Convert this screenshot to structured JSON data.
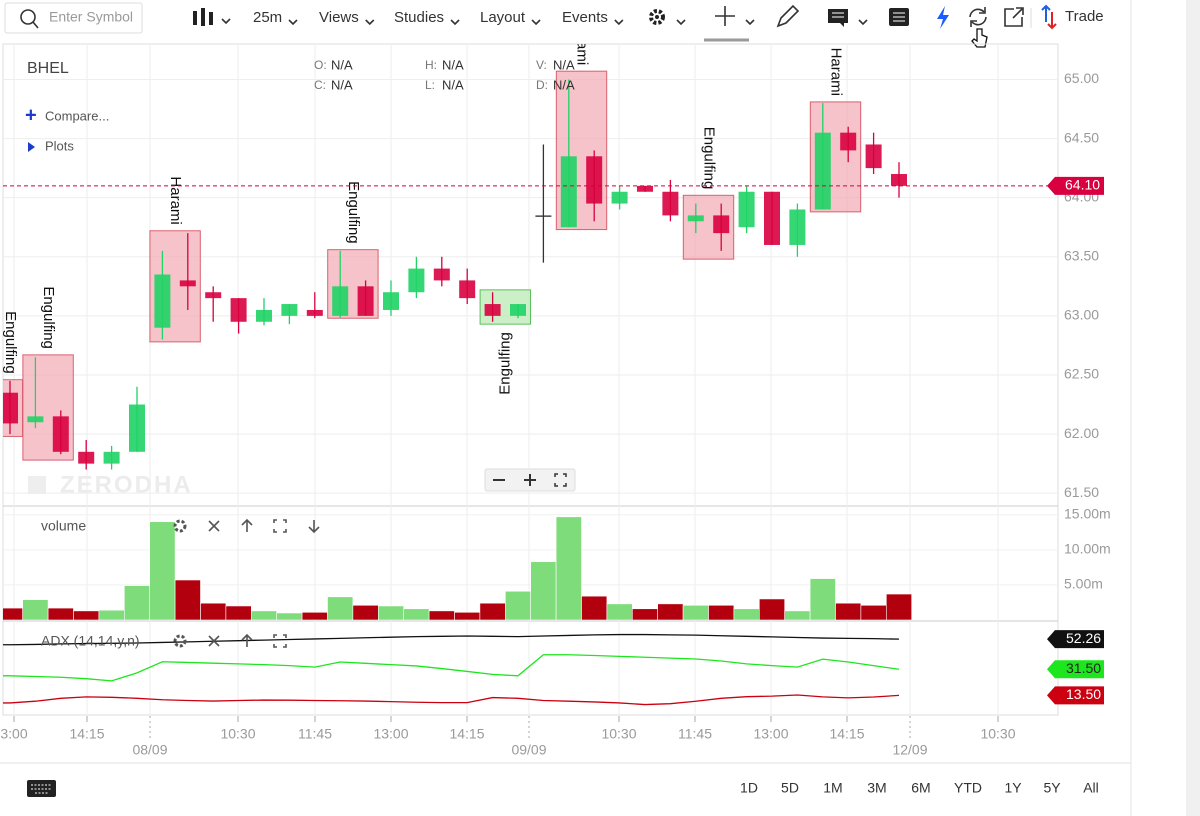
{
  "toolbar": {
    "search_placeholder": "Enter Symbol",
    "interval": "25m",
    "menus": [
      "Views",
      "Studies",
      "Layout",
      "Events"
    ],
    "trade": "Trade"
  },
  "legend": {
    "symbol": "BHEL",
    "ohlc": [
      {
        "label": "O:",
        "value": "N/A"
      },
      {
        "label": "C:",
        "value": "N/A"
      },
      {
        "label": "H:",
        "value": "N/A"
      },
      {
        "label": "L:",
        "value": "N/A"
      },
      {
        "label": "V:",
        "value": "N/A"
      },
      {
        "label": "D:",
        "value": "N/A"
      }
    ],
    "compare": "Compare...",
    "plots": "Plots"
  },
  "watermark": "ZERODHA",
  "chart_data": {
    "type": "candlestick",
    "open": [
      62.35,
      62.1,
      62.15,
      61.85,
      61.75,
      61.85,
      62.9,
      63.3,
      63.2,
      63.15,
      62.95,
      63.0,
      63.05,
      63.0,
      63.25,
      63.05,
      63.2,
      63.4,
      63.3,
      63.1,
      63.0,
      63.85,
      63.75,
      64.35,
      63.95,
      64.1,
      64.05,
      63.8,
      63.85,
      63.75,
      64.05,
      63.6,
      63.9,
      64.55,
      64.45,
      64.2
    ],
    "high": [
      62.45,
      62.65,
      62.2,
      61.95,
      61.9,
      62.4,
      63.55,
      63.7,
      63.25,
      63.15,
      63.15,
      63.1,
      63.2,
      63.55,
      63.3,
      63.3,
      63.5,
      63.5,
      63.4,
      63.2,
      63.1,
      64.45,
      65.0,
      64.4,
      64.1,
      64.1,
      64.15,
      63.95,
      63.95,
      64.1,
      64.05,
      63.95,
      64.8,
      64.6,
      64.55,
      64.3
    ],
    "low": [
      62.0,
      62.05,
      61.83,
      61.7,
      61.7,
      61.85,
      62.8,
      63.05,
      62.95,
      62.85,
      62.92,
      62.93,
      62.98,
      62.98,
      63.0,
      63.0,
      63.15,
      63.25,
      63.1,
      62.95,
      62.98,
      63.45,
      63.75,
      63.8,
      63.9,
      64.05,
      63.8,
      63.7,
      63.55,
      63.7,
      63.6,
      63.5,
      63.9,
      64.3,
      64.2,
      64.0
    ],
    "close": [
      62.09,
      62.15,
      61.85,
      61.75,
      61.85,
      62.25,
      63.35,
      63.25,
      63.15,
      62.95,
      63.05,
      63.1,
      63.0,
      63.25,
      63.0,
      63.2,
      63.4,
      63.3,
      63.15,
      63.0,
      63.1,
      63.85,
      64.35,
      63.95,
      64.05,
      64.05,
      63.85,
      63.85,
      63.7,
      64.05,
      63.6,
      63.9,
      64.55,
      64.4,
      64.25,
      64.1
    ],
    "up_color": "#1fd365",
    "down_color": "#d8003f",
    "ylim": [
      61.4,
      65.3
    ],
    "yticks": [
      {
        "value": 65,
        "label": "65.00"
      },
      {
        "value": 64.5,
        "label": "64.50"
      },
      {
        "value": 64,
        "label": "64.00"
      },
      {
        "value": 63.5,
        "label": "63.50"
      },
      {
        "value": 63,
        "label": "63.00"
      },
      {
        "value": 62.5,
        "label": "62.50"
      },
      {
        "value": 62,
        "label": "62.00"
      },
      {
        "value": 61.5,
        "label": "61.50"
      }
    ],
    "grid": true,
    "last_price": {
      "value": 64.1,
      "label": "64.10"
    },
    "patterns": [
      {
        "label": "Engulfing",
        "start": 0,
        "end": 0,
        "high": 62.46,
        "low": 61.98,
        "color": "#f4a9b4",
        "border": "#d9606f",
        "position": "above"
      },
      {
        "label": "Engulfing",
        "start": 1,
        "end": 2,
        "high": 62.67,
        "low": 61.78,
        "color": "#f4a9b4",
        "border": "#d9606f",
        "position": "above"
      },
      {
        "label": "Harami",
        "start": 6,
        "end": 7,
        "high": 63.72,
        "low": 62.78,
        "color": "#f4a9b4",
        "border": "#d9606f",
        "position": "above"
      },
      {
        "label": "Engulfing",
        "start": 13,
        "end": 14,
        "high": 63.56,
        "low": 62.98,
        "color": "#f4a9b4",
        "border": "#d9606f",
        "position": "above"
      },
      {
        "label": "Engulfing",
        "start": 19,
        "end": 20,
        "high": 63.22,
        "low": 62.93,
        "color": "#b6e8b0",
        "border": "#5cbf5c",
        "position": "below"
      },
      {
        "label": "Harami",
        "start": 22,
        "end": 23,
        "high": 65.07,
        "low": 63.73,
        "color": "#f4a9b4",
        "border": "#d9606f",
        "position": "above"
      },
      {
        "label": "Engulfing",
        "start": 27,
        "end": 28,
        "high": 64.02,
        "low": 63.48,
        "color": "#f4a9b4",
        "border": "#d9606f",
        "position": "above"
      },
      {
        "label": "Harami",
        "start": 32,
        "end": 33,
        "high": 64.81,
        "low": 63.88,
        "color": "#f4a9b4",
        "border": "#d9606f",
        "position": "above"
      }
    ],
    "xticks": [
      "3:00",
      "14:15",
      "08/09",
      "10:30",
      "11:45",
      "13:00",
      "14:15",
      "09/09",
      "10:30",
      "11:45",
      "13:00",
      "14:15",
      "12/09",
      "10:30"
    ],
    "volume": {
      "title": "volume",
      "values": [
        1.7,
        2.9,
        1.7,
        1.3,
        1.4,
        4.9,
        14,
        5.7,
        2.4,
        2.0,
        1.3,
        1.0,
        1.1,
        3.3,
        2.1,
        2.0,
        1.6,
        1.3,
        1.1,
        2.4,
        4.1,
        8.3,
        14.7,
        3.4,
        2.3,
        1.6,
        2.3,
        2.1,
        2.1,
        1.6,
        3.0,
        1.3,
        5.9,
        2.4,
        2.1,
        3.7
      ],
      "up_color": "#7fdc7b",
      "down_color": "#b3000f",
      "ylim": [
        0,
        16.1
      ],
      "yticks": [
        {
          "value": 15,
          "label": "15.00m"
        },
        {
          "value": 10,
          "label": "10.00m"
        },
        {
          "value": 5,
          "label": "5.00m"
        }
      ]
    },
    "adx": {
      "title": "ADX (14,14,y,n)",
      "ylim": [
        0,
        62
      ],
      "series": [
        {
          "color": "#111111",
          "text_color": "#ffffff",
          "last_label": "52.26",
          "values": [
            48.4,
            48.6,
            49,
            49.2,
            49.4,
            49.6,
            50,
            50.4,
            50.8,
            51.2,
            51.6,
            52,
            52.4,
            52.8,
            53.2,
            53.6,
            54,
            54.2,
            54.4,
            54.2,
            54,
            54.4,
            54.8,
            55.2,
            55.4,
            55.4,
            55.2,
            55,
            54.6,
            54.2,
            53.8,
            53.4,
            53,
            52.8,
            52.6,
            52.26
          ]
        },
        {
          "color": "#1ee61e",
          "text_color": "#222222",
          "last_label": "31.50",
          "values": [
            27,
            26.5,
            26,
            25,
            23.5,
            29,
            36.7,
            36.2,
            35.7,
            35.2,
            34.7,
            34,
            33,
            36.5,
            35.6,
            34.7,
            33.8,
            32,
            30,
            28,
            27,
            41.5,
            41.5,
            41,
            40.4,
            39.8,
            39.2,
            38.6,
            37.2,
            35.2,
            34,
            33,
            38.5,
            36.5,
            34,
            31.5
          ]
        },
        {
          "color": "#cc0010",
          "text_color": "#ffffff",
          "last_label": "13.50",
          "values": [
            8.3,
            9.5,
            11.5,
            12.5,
            12.2,
            11.5,
            10.5,
            10,
            9.6,
            10,
            10.3,
            10.2,
            10,
            9.8,
            9.6,
            9.2,
            8.8,
            8.5,
            8.5,
            12,
            11.5,
            10,
            9.5,
            9,
            8.3,
            7.2,
            7.8,
            9.5,
            11.5,
            12.6,
            13,
            13.8,
            12.5,
            11.8,
            12.4,
            13.5
          ]
        }
      ]
    }
  },
  "range_buttons": [
    "1D",
    "5D",
    "1M",
    "3M",
    "6M",
    "YTD",
    "1Y",
    "5Y",
    "All"
  ]
}
